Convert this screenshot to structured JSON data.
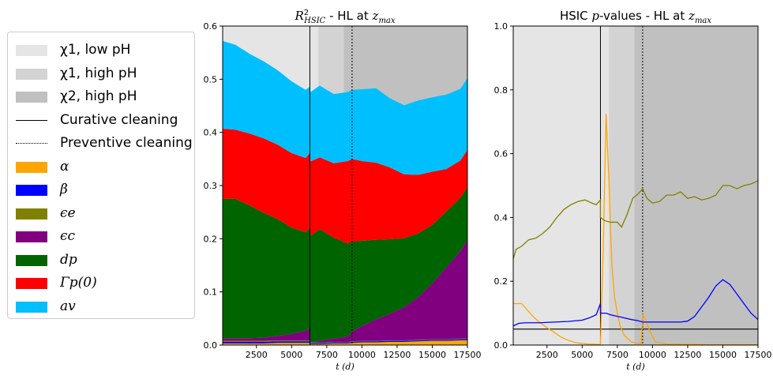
{
  "chart_data": [
    {
      "type": "area",
      "title": "R²HSIC - HL at zmax",
      "title_parts": {
        "sym": "R",
        "sup": "2",
        "sub": "HSIC",
        "text": " - HL at ",
        "zsym": "z",
        "zsub": "max"
      },
      "xlabel": "t (d)",
      "ylabel": "",
      "xlim": [
        100,
        17500
      ],
      "ylim": [
        0,
        0.6
      ],
      "xticks": [
        2500,
        5000,
        7500,
        10000,
        12500,
        15000,
        17500
      ],
      "yticks": [
        0.0,
        0.1,
        0.2,
        0.3,
        0.4,
        0.5,
        0.6
      ],
      "x": [
        100,
        1000,
        2000,
        3000,
        4000,
        5000,
        6000,
        6300,
        6300,
        7000,
        8000,
        9000,
        9300,
        10000,
        11000,
        12000,
        13000,
        14000,
        15000,
        16000,
        17000,
        17500
      ],
      "series": [
        {
          "name": "α",
          "color": "#FFA500",
          "values": [
            0.003,
            0.003,
            0.003,
            0.003,
            0.004,
            0.004,
            0.004,
            0.004,
            0.002,
            0.002,
            0.003,
            0.003,
            0.004,
            0.005,
            0.005,
            0.006,
            0.006,
            0.007,
            0.008,
            0.008,
            0.009,
            0.009
          ]
        },
        {
          "name": "β",
          "color": "#0000FF",
          "values": [
            0.003,
            0.003,
            0.003,
            0.003,
            0.003,
            0.003,
            0.003,
            0.003,
            0.002,
            0.002,
            0.002,
            0.002,
            0.002,
            0.002,
            0.002,
            0.002,
            0.002,
            0.002,
            0.002,
            0.002,
            0.002,
            0.002
          ]
        },
        {
          "name": "ϵe",
          "color": "#808000",
          "values": [
            0.002,
            0.002,
            0.002,
            0.002,
            0.002,
            0.002,
            0.002,
            0.002,
            0.001,
            0.001,
            0.001,
            0.001,
            0.001,
            0.001,
            0.001,
            0.001,
            0.001,
            0.001,
            0.001,
            0.001,
            0.001,
            0.001
          ]
        },
        {
          "name": "ϵc",
          "color": "#800080",
          "values": [
            0.005,
            0.005,
            0.005,
            0.006,
            0.008,
            0.012,
            0.018,
            0.022,
            0.0,
            0.003,
            0.006,
            0.01,
            0.018,
            0.028,
            0.04,
            0.05,
            0.062,
            0.08,
            0.105,
            0.135,
            0.165,
            0.185
          ]
        },
        {
          "name": "dp",
          "color": "#006400",
          "values": [
            0.262,
            0.262,
            0.25,
            0.235,
            0.22,
            0.2,
            0.185,
            0.19,
            0.2,
            0.21,
            0.19,
            0.175,
            0.17,
            0.16,
            0.15,
            0.14,
            0.13,
            0.12,
            0.11,
            0.105,
            0.1,
            0.1
          ]
        },
        {
          "name": "Γp(0)",
          "color": "#FF0000",
          "values": [
            0.132,
            0.13,
            0.135,
            0.14,
            0.14,
            0.14,
            0.14,
            0.14,
            0.14,
            0.135,
            0.14,
            0.155,
            0.155,
            0.15,
            0.145,
            0.135,
            0.12,
            0.11,
            0.1,
            0.08,
            0.07,
            0.07
          ]
        },
        {
          "name": "av",
          "color": "#00BFFF",
          "values": [
            0.165,
            0.16,
            0.15,
            0.145,
            0.14,
            0.135,
            0.128,
            0.125,
            0.13,
            0.135,
            0.13,
            0.13,
            0.13,
            0.135,
            0.14,
            0.13,
            0.13,
            0.14,
            0.14,
            0.14,
            0.135,
            0.135
          ]
        }
      ],
      "regions": [
        {
          "name": "χ1, low pH",
          "color": "#E5E5E5",
          "x": [
            100,
            6900
          ]
        },
        {
          "name": "χ1, high pH",
          "color": "#D3D3D3",
          "x": [
            6900,
            8700
          ]
        },
        {
          "name": "χ2, high pH",
          "color": "#C0C0C0",
          "x": [
            8700,
            17500
          ]
        }
      ],
      "vlines": [
        {
          "name": "Curative cleaning",
          "x": 6300,
          "style": "solid"
        },
        {
          "name": "Preventive cleaning",
          "x": 9300,
          "style": "dotted"
        }
      ]
    },
    {
      "type": "line",
      "title": "HSIC p-values - HL at zmax",
      "title_parts": {
        "pre": "HSIC ",
        "p": "p",
        "text": "-values - HL at ",
        "zsym": "z",
        "zsub": "max"
      },
      "xlabel": "t (d)",
      "ylabel": "",
      "xlim": [
        100,
        17500
      ],
      "ylim": [
        0,
        1.0
      ],
      "xticks": [
        2500,
        5000,
        7500,
        10000,
        12500,
        15000,
        17500
      ],
      "yticks": [
        0.0,
        0.2,
        0.4,
        0.6,
        0.8,
        1.0
      ],
      "hline": 0.05,
      "series": [
        {
          "name": "α",
          "color": "#FFA500",
          "x": [
            100,
            700,
            1000,
            1500,
            2000,
            2500,
            3000,
            3500,
            4000,
            4500,
            5000,
            5500,
            6000,
            6300,
            6300,
            6500,
            6700,
            6900,
            7100,
            7300,
            7500,
            7700,
            8000,
            8500,
            9000,
            9200,
            9300,
            9500,
            9800,
            10200,
            11000,
            12000,
            13000,
            14000,
            15000,
            16000,
            17000,
            17500
          ],
          "y": [
            0.13,
            0.13,
            0.115,
            0.09,
            0.07,
            0.055,
            0.04,
            0.025,
            0.015,
            0.008,
            0.005,
            0.003,
            0.002,
            0.002,
            0.005,
            0.3,
            0.725,
            0.52,
            0.26,
            0.15,
            0.1,
            0.06,
            0.03,
            0.01,
            0.005,
            0.004,
            0.095,
            0.08,
            0.045,
            0.01,
            0.003,
            0.002,
            0.002,
            0.001,
            0.001,
            0.001,
            0.001,
            0.001
          ]
        },
        {
          "name": "β",
          "color": "#0000FF",
          "x": [
            100,
            500,
            1000,
            2000,
            3000,
            4000,
            5000,
            5500,
            6000,
            6300,
            6300,
            6700,
            7000,
            7500,
            8000,
            8500,
            9000,
            9300,
            10000,
            11000,
            12000,
            12500,
            13000,
            13500,
            14000,
            14500,
            15000,
            15500,
            16000,
            16500,
            17000,
            17500
          ],
          "y": [
            0.06,
            0.068,
            0.07,
            0.07,
            0.072,
            0.074,
            0.078,
            0.085,
            0.095,
            0.13,
            0.1,
            0.1,
            0.095,
            0.09,
            0.085,
            0.08,
            0.076,
            0.072,
            0.072,
            0.072,
            0.072,
            0.075,
            0.09,
            0.12,
            0.15,
            0.185,
            0.205,
            0.19,
            0.16,
            0.13,
            0.1,
            0.08
          ]
        },
        {
          "name": "ϵe",
          "color": "#808000",
          "x": [
            100,
            300,
            700,
            1200,
            1700,
            2200,
            2700,
            3200,
            3700,
            4200,
            4700,
            5200,
            5700,
            6000,
            6300,
            6300,
            6600,
            7000,
            7500,
            7800,
            8200,
            8600,
            9000,
            9300,
            9600,
            10000,
            10500,
            11000,
            11500,
            12000,
            12500,
            13000,
            13500,
            14000,
            14500,
            15000,
            15500,
            16000,
            16500,
            17000,
            17500
          ],
          "y": [
            0.27,
            0.3,
            0.31,
            0.33,
            0.335,
            0.35,
            0.37,
            0.4,
            0.425,
            0.44,
            0.45,
            0.455,
            0.445,
            0.44,
            0.455,
            0.4,
            0.39,
            0.385,
            0.385,
            0.37,
            0.41,
            0.46,
            0.475,
            0.49,
            0.46,
            0.445,
            0.45,
            0.47,
            0.47,
            0.48,
            0.46,
            0.465,
            0.455,
            0.46,
            0.47,
            0.5,
            0.5,
            0.49,
            0.5,
            0.505,
            0.515
          ]
        }
      ],
      "regions": [
        {
          "name": "χ1, low pH",
          "color": "#E5E5E5",
          "x": [
            100,
            6900
          ]
        },
        {
          "name": "χ1, high pH",
          "color": "#D3D3D3",
          "x": [
            6900,
            8700
          ]
        },
        {
          "name": "χ2, high pH",
          "color": "#C0C0C0",
          "x": [
            8700,
            17500
          ]
        }
      ],
      "vlines": [
        {
          "name": "Curative cleaning",
          "x": 6300,
          "style": "solid"
        },
        {
          "name": "Preventive cleaning",
          "x": 9300,
          "style": "dotted"
        }
      ]
    }
  ],
  "legend": {
    "placement": "left",
    "items": [
      {
        "label": "χ1, low pH",
        "kind": "patch",
        "color": "#E5E5E5"
      },
      {
        "label": "χ1, high pH",
        "kind": "patch",
        "color": "#D3D3D3"
      },
      {
        "label": "χ2, high pH",
        "kind": "patch",
        "color": "#C0C0C0"
      },
      {
        "label": "Curative cleaning",
        "kind": "line",
        "style": "solid"
      },
      {
        "label": "Preventive cleaning",
        "kind": "line",
        "style": "dotted"
      },
      {
        "label": "α",
        "kind": "patch",
        "color": "#FFA500"
      },
      {
        "label": "β",
        "kind": "patch",
        "color": "#0000FF"
      },
      {
        "label": "ϵe",
        "kind": "patch",
        "color": "#808000"
      },
      {
        "label": "ϵc",
        "kind": "patch",
        "color": "#800080"
      },
      {
        "label": "dp",
        "kind": "patch",
        "color": "#006400"
      },
      {
        "label": "Γp(0)",
        "kind": "patch",
        "color": "#FF0000"
      },
      {
        "label": "av",
        "kind": "patch",
        "color": "#00BFFF"
      }
    ]
  }
}
